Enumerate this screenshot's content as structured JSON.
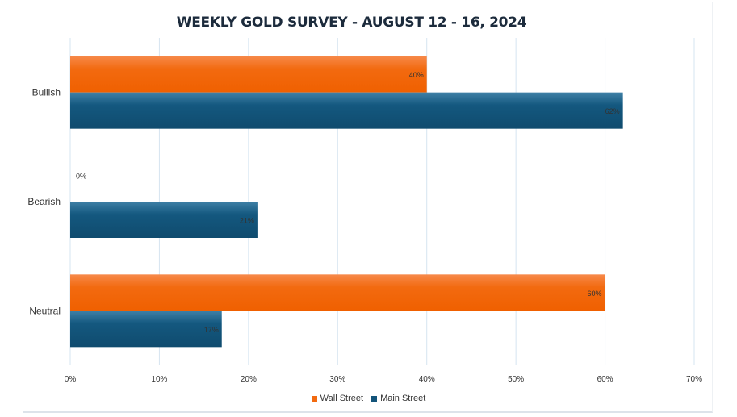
{
  "chart_data": {
    "type": "bar",
    "orientation": "horizontal",
    "title": "WEEKLY GOLD SURVEY - AUGUST 12 - 16, 2024",
    "categories": [
      "Bullish",
      "Bearish",
      "Neutral"
    ],
    "series": [
      {
        "name": "Wall Street",
        "color": "#f26a10",
        "values": [
          40,
          0,
          60
        ],
        "labels": [
          "40%",
          "0%",
          "60%"
        ]
      },
      {
        "name": "Main Street",
        "color": "#13547a",
        "values": [
          62,
          21,
          17
        ],
        "labels": [
          "62%",
          "21%",
          "17%"
        ]
      }
    ],
    "xlim": [
      0,
      70
    ],
    "xticks": [
      0,
      10,
      20,
      30,
      40,
      50,
      60,
      70
    ],
    "xtick_labels": [
      "0%",
      "10%",
      "20%",
      "30%",
      "40%",
      "50%",
      "60%",
      "70%"
    ],
    "grid": true,
    "legend_position": "bottom"
  }
}
